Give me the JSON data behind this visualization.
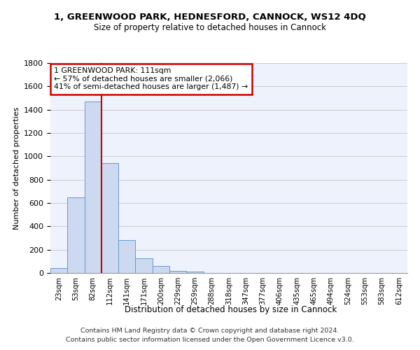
{
  "title1": "1, GREENWOOD PARK, HEDNESFORD, CANNOCK, WS12 4DQ",
  "title2": "Size of property relative to detached houses in Cannock",
  "xlabel": "Distribution of detached houses by size in Cannock",
  "ylabel": "Number of detached properties",
  "bar_labels": [
    "23sqm",
    "53sqm",
    "82sqm",
    "112sqm",
    "141sqm",
    "171sqm",
    "200sqm",
    "229sqm",
    "259sqm",
    "288sqm",
    "318sqm",
    "347sqm",
    "377sqm",
    "406sqm",
    "435sqm",
    "465sqm",
    "494sqm",
    "524sqm",
    "553sqm",
    "583sqm",
    "612sqm"
  ],
  "bar_values": [
    40,
    650,
    1470,
    940,
    285,
    125,
    60,
    20,
    10,
    0,
    0,
    0,
    0,
    0,
    0,
    0,
    0,
    0,
    0,
    0,
    0
  ],
  "bar_color": "#ccd9f0",
  "bar_edgecolor": "#6699cc",
  "vline_x": 3.0,
  "vline_color": "#cc0000",
  "annotation_line1": "1 GREENWOOD PARK: 111sqm",
  "annotation_line2": "← 57% of detached houses are smaller (2,066)",
  "annotation_line3": "41% of semi-detached houses are larger (1,487) →",
  "annotation_box_color": "#cc0000",
  "ylim": [
    0,
    1800
  ],
  "yticks": [
    0,
    200,
    400,
    600,
    800,
    1000,
    1200,
    1400,
    1600,
    1800
  ],
  "footer_line1": "Contains HM Land Registry data © Crown copyright and database right 2024.",
  "footer_line2": "Contains public sector information licensed under the Open Government Licence v3.0.",
  "grid_color": "#cccccc",
  "bg_color": "#eef2fc"
}
